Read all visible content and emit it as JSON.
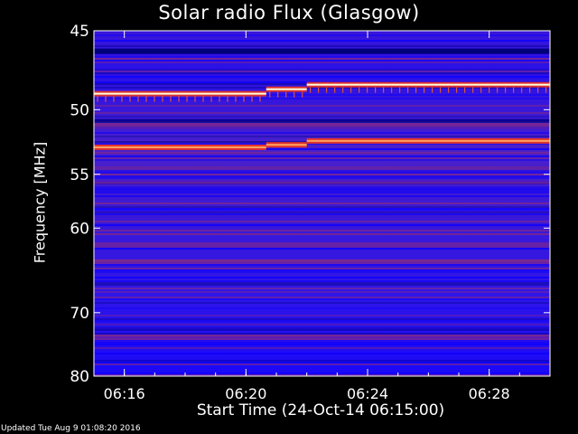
{
  "chart_data": {
    "type": "heatmap",
    "title": "Solar radio Flux (Glasgow)",
    "ylabel": "Frequency [MHz]",
    "xlabel": "Start Time (24-Oct-14 06:15:00)",
    "y_ticks": [
      45,
      50,
      55,
      60,
      70,
      80
    ],
    "ylim": [
      45,
      80
    ],
    "x_ticks": [
      "06:16",
      "06:20",
      "06:24",
      "06:28"
    ],
    "xlim": [
      "06:15:00",
      "06:30:00"
    ],
    "emission_lines_mhz": [
      {
        "start": "06:15:00",
        "end": "06:20:40",
        "freqs": [
          48.9,
          52.8
        ]
      },
      {
        "start": "06:20:40",
        "end": "06:22:00",
        "freqs": [
          48.6,
          52.6
        ]
      },
      {
        "start": "06:22:00",
        "end": "06:30:00",
        "freqs": [
          48.3,
          52.3
        ]
      }
    ],
    "colors": {
      "low": "#0a00ff",
      "mid": "#6020c0",
      "band": "#8a2a80",
      "line": "#ff3a10",
      "peak": "#ffffe0"
    }
  },
  "footer": {
    "updated": "Updated Tue Aug  9 01:08:20 2016"
  }
}
